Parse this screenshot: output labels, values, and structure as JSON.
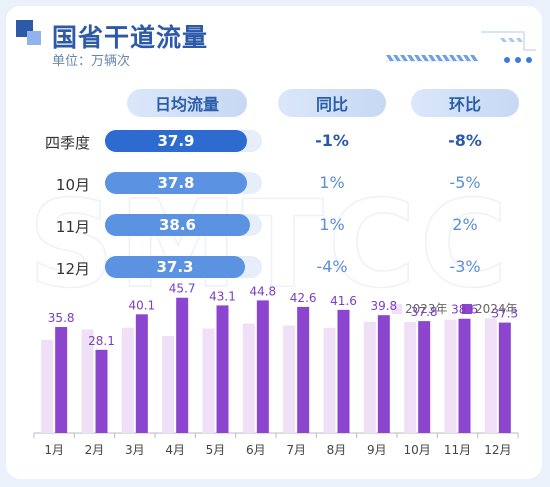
{
  "header": {
    "title": "国省干道流量",
    "unit": "单位：万辆次"
  },
  "table": {
    "columns": [
      "日均流量",
      "同比",
      "环比"
    ],
    "rows": [
      {
        "label": "四季度",
        "flow": "37.9",
        "flow_value": 37.9,
        "yoy": "-1%",
        "mom": "-8%",
        "highlight": true
      },
      {
        "label": "10月",
        "flow": "37.8",
        "flow_value": 37.8,
        "yoy": "1%",
        "mom": "-5%",
        "highlight": false
      },
      {
        "label": "11月",
        "flow": "38.6",
        "flow_value": 38.6,
        "yoy": "1%",
        "mom": "2%",
        "highlight": false
      },
      {
        "label": "12月",
        "flow": "37.3",
        "flow_value": 37.3,
        "yoy": "-4%",
        "mom": "-3%",
        "highlight": false
      }
    ]
  },
  "colors": {
    "series_2023": "#efe0f7",
    "series_2024": "#8c45cf",
    "accent": "#2c5aa8",
    "pill_dark": "#2d6bd0",
    "pill_light": "#5b93e2"
  },
  "chart_data": {
    "type": "bar",
    "categories": [
      "1月",
      "2月",
      "3月",
      "4月",
      "5月",
      "6月",
      "7月",
      "8月",
      "9月",
      "10月",
      "11月",
      "12月"
    ],
    "series": [
      {
        "name": "2023年",
        "values": [
          31.5,
          35.0,
          35.6,
          32.8,
          35.3,
          37.0,
          36.3,
          35.5,
          37.6,
          37.5,
          38.3,
          38.7
        ]
      },
      {
        "name": "2024年",
        "values": [
          35.8,
          28.1,
          40.1,
          45.7,
          43.1,
          44.8,
          42.6,
          41.6,
          39.8,
          37.8,
          38.6,
          37.3
        ]
      }
    ],
    "data_labels": [
      "35.8",
      "28.1",
      "40.1",
      "45.7",
      "43.1",
      "44.8",
      "42.6",
      "41.6",
      "39.8",
      "37.8",
      "38.6",
      "37.3"
    ],
    "ylim": [
      0,
      50
    ],
    "legend": "top-right",
    "grid": false
  }
}
